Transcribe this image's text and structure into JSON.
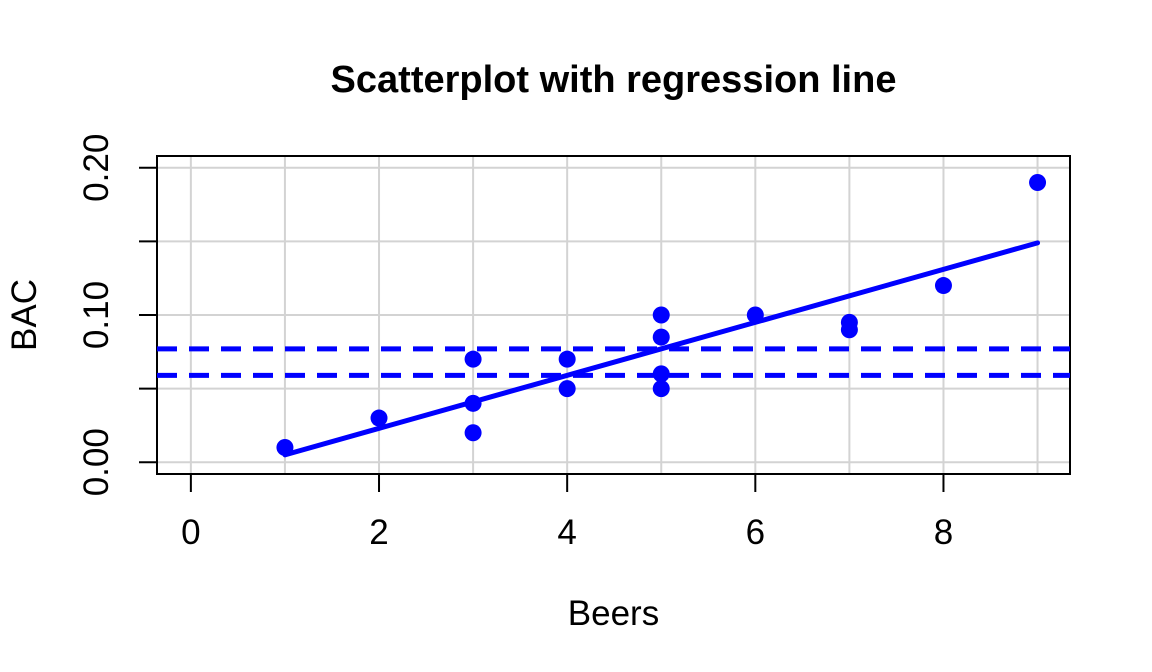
{
  "chart_data": {
    "type": "scatter",
    "title": "Scatterplot with regression line",
    "xlabel": "Beers",
    "ylabel": "BAC",
    "xlim": [
      -0.36,
      9.345
    ],
    "ylim": [
      -0.008,
      0.208
    ],
    "x_ticks": [
      {
        "value": 0,
        "label": "0"
      },
      {
        "value": 2,
        "label": "2"
      },
      {
        "value": 4,
        "label": "4"
      },
      {
        "value": 6,
        "label": "6"
      },
      {
        "value": 8,
        "label": "8"
      }
    ],
    "y_ticks": [
      {
        "value": 0.0,
        "label": "0.00"
      },
      {
        "value": 0.05,
        "label": ""
      },
      {
        "value": 0.1,
        "label": "0.10"
      },
      {
        "value": 0.15,
        "label": ""
      },
      {
        "value": 0.2,
        "label": "0.20"
      }
    ],
    "x_gridlines": [
      0,
      1,
      2,
      3,
      4,
      5,
      6,
      7,
      8,
      9
    ],
    "y_gridlines": [
      0.0,
      0.05,
      0.1,
      0.15,
      0.2
    ],
    "grid_on": true,
    "legend": null,
    "points": [
      {
        "x": 1,
        "y": 0.01
      },
      {
        "x": 2,
        "y": 0.03
      },
      {
        "x": 3,
        "y": 0.02
      },
      {
        "x": 3,
        "y": 0.04
      },
      {
        "x": 3,
        "y": 0.07
      },
      {
        "x": 4,
        "y": 0.05
      },
      {
        "x": 4,
        "y": 0.07
      },
      {
        "x": 5,
        "y": 0.05
      },
      {
        "x": 5,
        "y": 0.06
      },
      {
        "x": 5,
        "y": 0.085
      },
      {
        "x": 5,
        "y": 0.1
      },
      {
        "x": 6,
        "y": 0.1
      },
      {
        "x": 7,
        "y": 0.09
      },
      {
        "x": 7,
        "y": 0.095
      },
      {
        "x": 8,
        "y": 0.12
      },
      {
        "x": 9,
        "y": 0.19
      }
    ],
    "regression_line": {
      "x1": 1,
      "y1": 0.005,
      "x2": 9,
      "y2": 0.149
    },
    "reference_lines": [
      {
        "y": 0.077,
        "style": "dashed"
      },
      {
        "y": 0.059,
        "style": "dashed"
      }
    ],
    "colors": {
      "series": "#0000FF",
      "grid": "#D3D3D3",
      "axis": "#000000",
      "background": "#FFFFFF"
    }
  }
}
